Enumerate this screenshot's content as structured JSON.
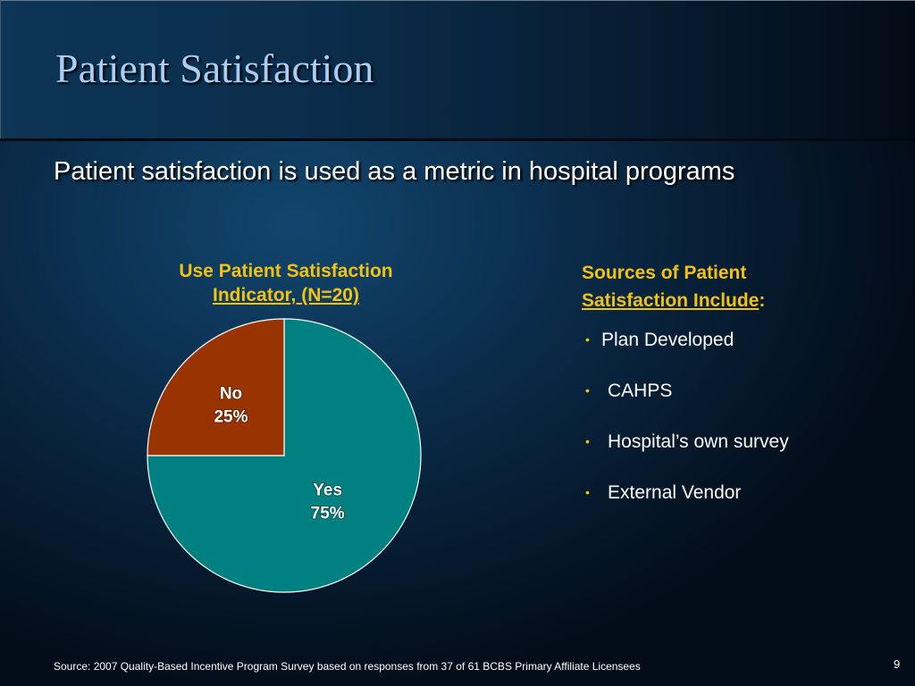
{
  "slide": {
    "title": "Patient Satisfaction",
    "subtitle": "Patient satisfaction is used as a metric in hospital programs",
    "footer_source": "Source:  2007 Quality-Based Incentive Program Survey based on responses from 37 of 61 BCBS Primary Affiliate Licensees",
    "page_number": "9"
  },
  "chart_data": {
    "type": "pie",
    "title_line1": "Use Patient Satisfaction",
    "title_line2": "Indicator, (N=20)",
    "slices": [
      {
        "name": "Yes",
        "value": 75,
        "label_pct": "75%",
        "color": "#008080"
      },
      {
        "name": "No",
        "value": 25,
        "label_pct": "25%",
        "color": "#993300"
      }
    ],
    "start_angle_deg": 0,
    "direction": "clockwise",
    "edge_color": "#ffffff"
  },
  "sources": {
    "title_line1": "Sources of Patient",
    "title_line2": "Satisfaction Include",
    "title_suffix": ":",
    "bullet": "•",
    "items": [
      "Plan Developed",
      "CAHPS",
      "Hospital’s own survey",
      "External Vendor"
    ]
  },
  "colors": {
    "accent_yellow": "#f2c211",
    "title_blue": "#a9cdf5"
  }
}
